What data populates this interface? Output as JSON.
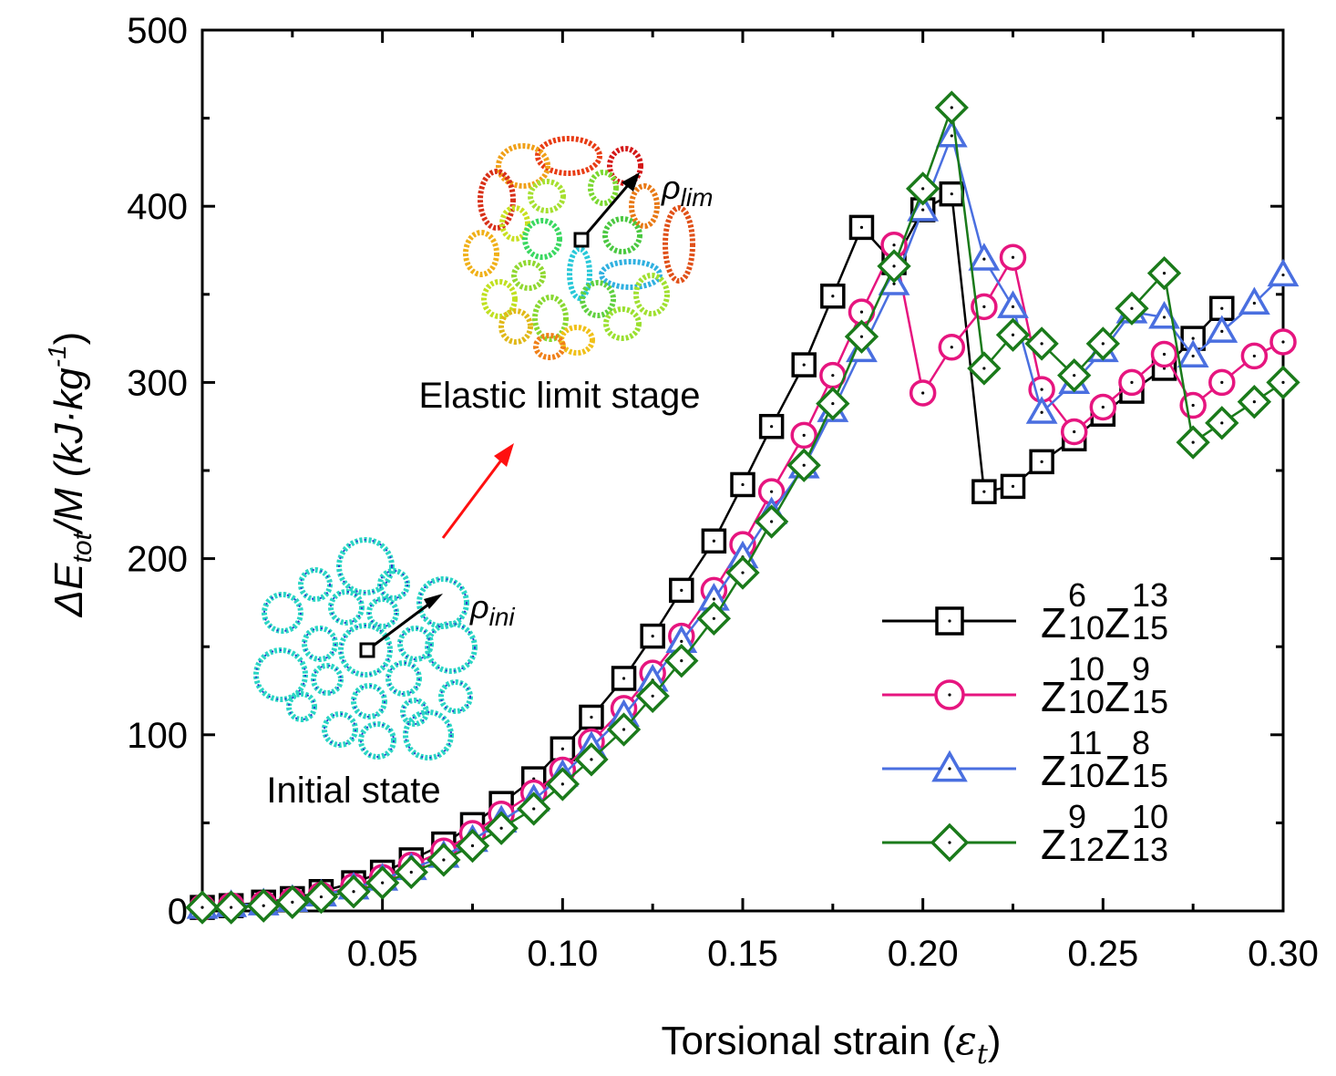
{
  "chart_data": {
    "type": "line",
    "xlabel": "Torsional strain (",
    "xlabel_symbol": "ε",
    "xlabel_sub": "t",
    "xlabel_close": ")",
    "ylabel": {
      "delta": "ΔE",
      "sub": "tot",
      "rest": "/M (kJ·kg",
      "sup": "-1",
      "close": ")"
    },
    "xlim": [
      0.0,
      0.3
    ],
    "ylim": [
      0,
      500
    ],
    "xticks": [
      0.05,
      0.1,
      0.15,
      0.2,
      0.25,
      0.3
    ],
    "xtick_labels": [
      "0.05",
      "0.10",
      "0.15",
      "0.20",
      "0.25",
      "0.30"
    ],
    "yticks": [
      0,
      100,
      200,
      300,
      400,
      500
    ],
    "ytick_labels": [
      "0",
      "100",
      "200",
      "300",
      "400",
      "500"
    ],
    "grid": false,
    "legend_position": "bottom-right",
    "series": [
      {
        "name": "Z10^6 Z15^13",
        "legend": {
          "base1": "Z",
          "sub1": "10",
          "sup1": "6",
          "base2": "Z",
          "sub2": "15",
          "sup2": "13"
        },
        "color": "#000000",
        "marker": "square",
        "x": [
          0.0,
          0.008,
          0.017,
          0.025,
          0.033,
          0.042,
          0.05,
          0.058,
          0.067,
          0.075,
          0.083,
          0.092,
          0.1,
          0.108,
          0.117,
          0.125,
          0.133,
          0.142,
          0.15,
          0.158,
          0.167,
          0.175,
          0.183,
          0.192,
          0.2,
          0.208,
          0.217,
          0.225,
          0.233,
          0.242,
          0.25,
          0.258,
          0.267,
          0.275,
          0.283
        ],
        "y": [
          2,
          3,
          5,
          7,
          11,
          16,
          22,
          29,
          38,
          49,
          61,
          75,
          92,
          110,
          132,
          156,
          182,
          210,
          242,
          275,
          310,
          349,
          388,
          368,
          398,
          407,
          238,
          241,
          255,
          268,
          282,
          295,
          308,
          325,
          342
        ]
      },
      {
        "name": "Z10^10 Z15^9",
        "legend": {
          "base1": "Z",
          "sub1": "10",
          "sup1": "10",
          "base2": "Z",
          "sub2": "15",
          "sup2": "9"
        },
        "color": "#e6157f",
        "marker": "circle",
        "x": [
          0.0,
          0.008,
          0.017,
          0.025,
          0.033,
          0.042,
          0.05,
          0.058,
          0.067,
          0.075,
          0.083,
          0.092,
          0.1,
          0.108,
          0.117,
          0.125,
          0.133,
          0.142,
          0.15,
          0.158,
          0.167,
          0.175,
          0.183,
          0.192,
          0.2,
          0.208,
          0.217,
          0.225,
          0.233,
          0.242,
          0.25,
          0.258,
          0.267,
          0.275,
          0.283,
          0.292,
          0.3
        ],
        "y": [
          2,
          3,
          4,
          6,
          9,
          14,
          19,
          26,
          34,
          44,
          55,
          67,
          80,
          96,
          115,
          135,
          156,
          182,
          208,
          238,
          270,
          304,
          340,
          378,
          294,
          320,
          343,
          371,
          296,
          272,
          286,
          300,
          316,
          287,
          300,
          315,
          323
        ]
      },
      {
        "name": "Z10^11 Z15^8",
        "legend": {
          "base1": "Z",
          "sub1": "10",
          "sup1": "11",
          "base2": "Z",
          "sub2": "15",
          "sup2": "8"
        },
        "color": "#4a6fe0",
        "marker": "triangle",
        "x": [
          0.0,
          0.008,
          0.017,
          0.025,
          0.033,
          0.042,
          0.05,
          0.058,
          0.067,
          0.075,
          0.083,
          0.092,
          0.1,
          0.108,
          0.117,
          0.125,
          0.133,
          0.142,
          0.15,
          0.158,
          0.167,
          0.175,
          0.183,
          0.192,
          0.2,
          0.208,
          0.217,
          0.225,
          0.233,
          0.242,
          0.25,
          0.258,
          0.267,
          0.275,
          0.283,
          0.292,
          0.3
        ],
        "y": [
          2,
          3,
          4,
          6,
          9,
          13,
          18,
          24,
          31,
          40,
          51,
          63,
          77,
          93,
          111,
          131,
          153,
          177,
          201,
          226,
          252,
          284,
          318,
          356,
          398,
          440,
          370,
          343,
          283,
          300,
          318,
          340,
          337,
          315,
          329,
          345,
          361
        ]
      },
      {
        "name": "Z12^9 Z13^10",
        "legend": {
          "base1": "Z",
          "sub1": "12",
          "sup1": "9",
          "base2": "Z",
          "sub2": "13",
          "sup2": "10"
        },
        "color": "#1a7a1a",
        "marker": "diamond",
        "x": [
          0.0,
          0.008,
          0.017,
          0.025,
          0.033,
          0.042,
          0.05,
          0.058,
          0.067,
          0.075,
          0.083,
          0.092,
          0.1,
          0.108,
          0.117,
          0.125,
          0.133,
          0.142,
          0.15,
          0.158,
          0.167,
          0.175,
          0.183,
          0.192,
          0.2,
          0.208,
          0.217,
          0.225,
          0.233,
          0.242,
          0.25,
          0.258,
          0.267,
          0.275,
          0.283,
          0.292,
          0.3
        ],
        "y": [
          2,
          2,
          3,
          5,
          8,
          11,
          16,
          22,
          29,
          37,
          47,
          58,
          72,
          86,
          103,
          122,
          142,
          166,
          192,
          221,
          253,
          288,
          326,
          366,
          410,
          456,
          308,
          327,
          322,
          304,
          322,
          342,
          362,
          266,
          277,
          289,
          300
        ]
      }
    ],
    "annotations": {
      "initial_label": "Initial state",
      "elastic_label": "Elastic limit stage",
      "rho_ini": {
        "base": "ρ",
        "sub": "ini"
      },
      "rho_lim": {
        "base": "ρ",
        "sub": "lim"
      }
    }
  }
}
